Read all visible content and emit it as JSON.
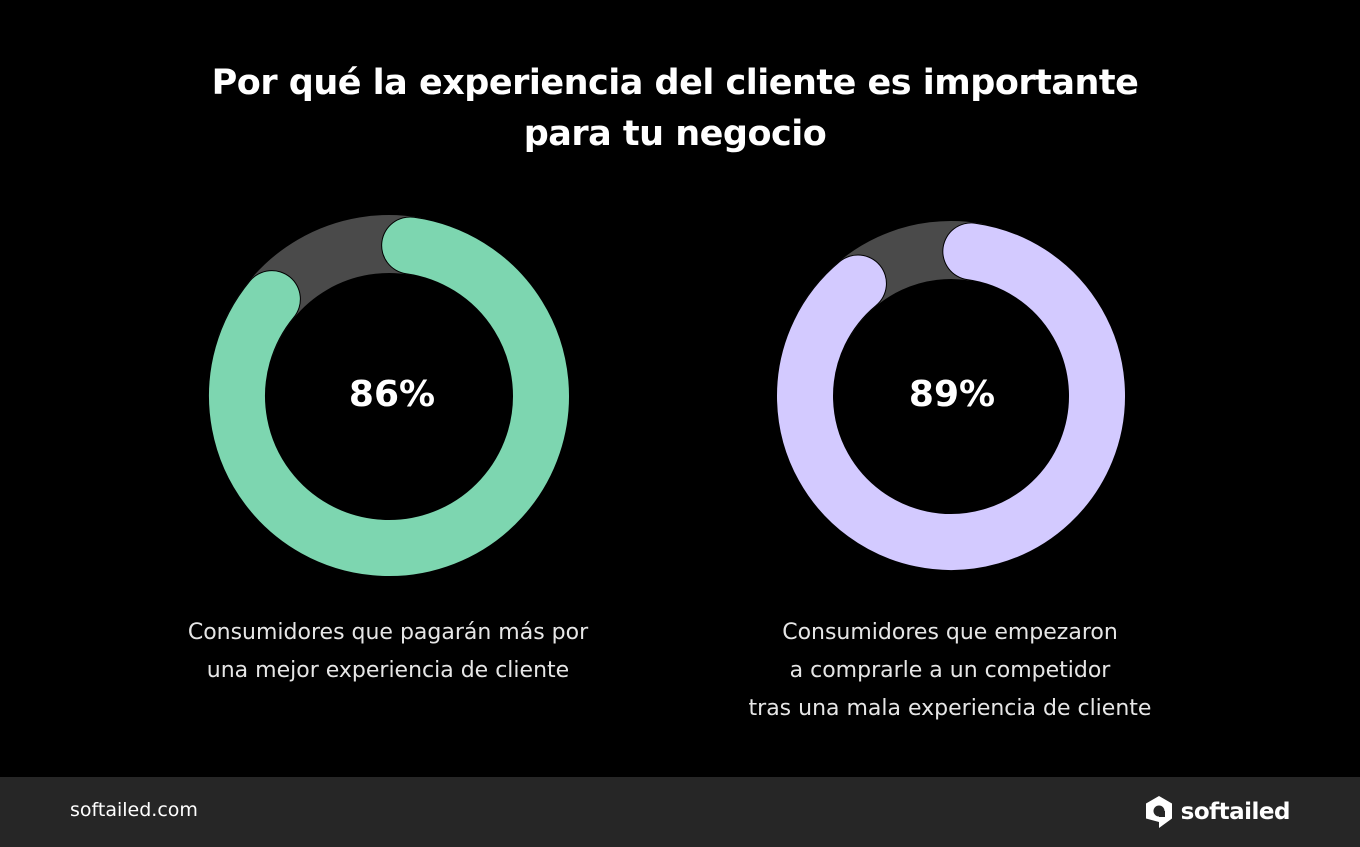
{
  "title": {
    "line1": "Por qué la experiencia del cliente es importante",
    "line2": "para tu negocio"
  },
  "chart_data": [
    {
      "type": "pie",
      "variant": "donut",
      "value_label": "86%",
      "values": [
        86,
        14
      ],
      "colors": [
        "#7dd6b0",
        "#4a4a4a"
      ],
      "caption": [
        "Consumidores que pagarán más por",
        "una mejor experiencia de cliente"
      ]
    },
    {
      "type": "pie",
      "variant": "donut",
      "value_label": "89%",
      "values": [
        89,
        11
      ],
      "colors": [
        "#d3caff",
        "#4a4a4a"
      ],
      "caption": [
        "Consumidores que empezaron",
        "a comprarle a un competidor",
        "tras una mala experiencia de cliente"
      ]
    }
  ],
  "footer": {
    "url": "softailed.com",
    "brand": "softailed",
    "brand_icon": "softailed-logo-icon",
    "background": "#262626"
  }
}
